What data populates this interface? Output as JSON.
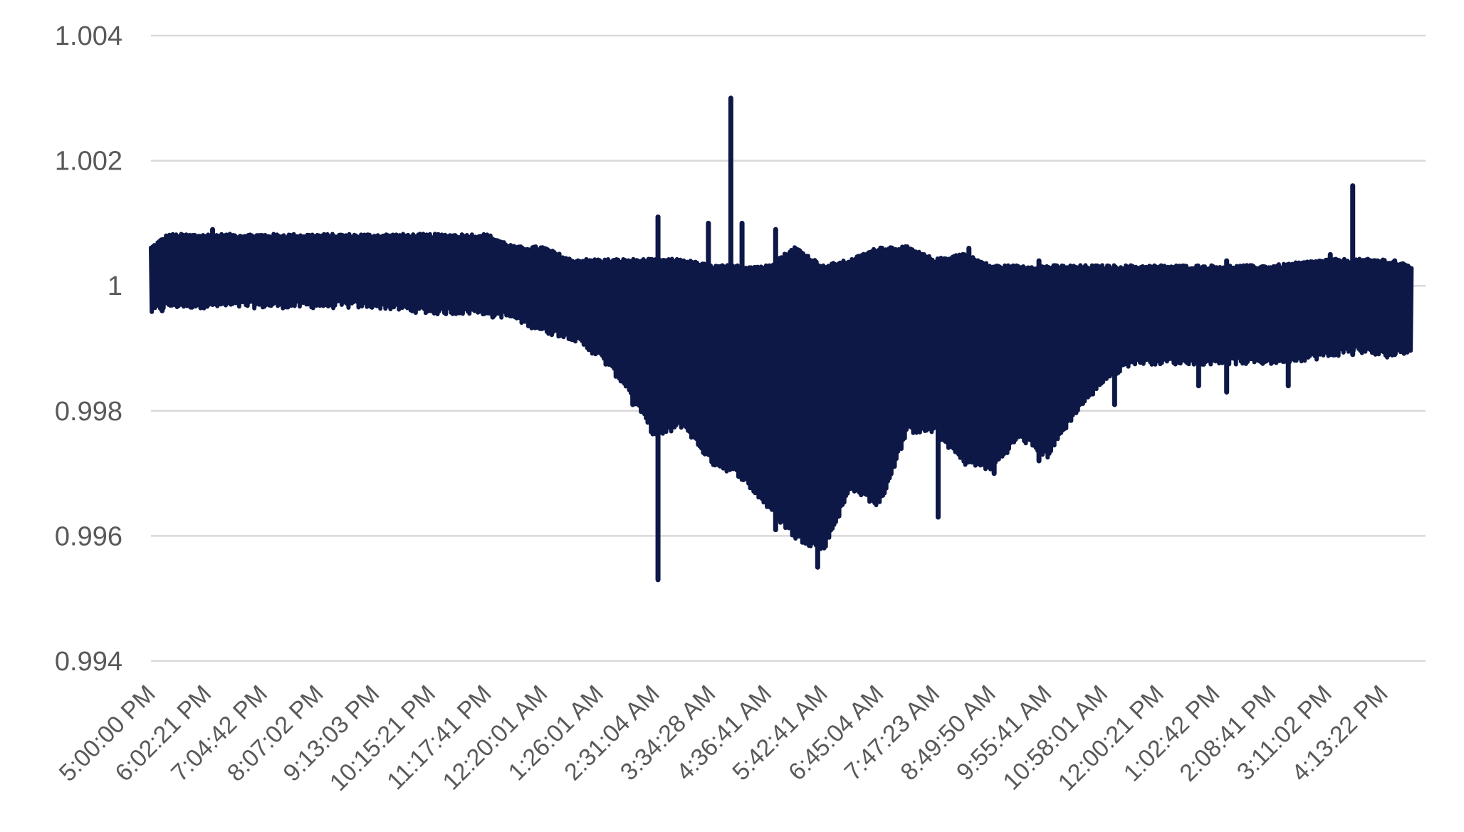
{
  "chart_data": {
    "type": "line",
    "title": "",
    "xlabel": "",
    "ylabel": "",
    "ylim": [
      0.994,
      1.004
    ],
    "yticks": [
      "1.004",
      "1.002",
      "1",
      "0.998",
      "0.996",
      "0.994"
    ],
    "ytick_values": [
      1.004,
      1.002,
      1.0,
      0.998,
      0.996,
      0.994
    ],
    "grid": true,
    "legend": "none",
    "x_categories": [
      "5:00:00 PM",
      "6:02:21 PM",
      "7:04:42 PM",
      "8:07:02 PM",
      "9:13:03 PM",
      "10:15:21 PM",
      "11:17:41 PM",
      "12:20:01 AM",
      "1:26:01 AM",
      "2:31:04 AM",
      "3:34:28 AM",
      "4:36:41 AM",
      "5:42:41 AM",
      "6:45:04 AM",
      "7:47:23 AM",
      "8:49:50 AM",
      "9:55:41 AM",
      "10:58:01 AM",
      "12:00:21 PM",
      "1:02:42 PM",
      "2:08:41 PM",
      "3:11:02 PM",
      "4:13:22 PM"
    ],
    "series": [
      {
        "color": "#0d1847",
        "envelope": [
          {
            "x": 0.0,
            "hi": 1.0006,
            "lo": 0.9996
          },
          {
            "x": 0.3,
            "hi": 1.0008,
            "lo": 0.9997
          },
          {
            "x": 0.6,
            "hi": 1.0008,
            "lo": 0.9997
          },
          {
            "x": 1.0,
            "hi": 1.0008,
            "lo": 0.9997
          },
          {
            "x": 2.0,
            "hi": 1.0008,
            "lo": 0.9997
          },
          {
            "x": 3.0,
            "hi": 1.0008,
            "lo": 0.9997
          },
          {
            "x": 4.0,
            "hi": 1.0008,
            "lo": 0.9997
          },
          {
            "x": 5.0,
            "hi": 1.0008,
            "lo": 0.9996
          },
          {
            "x": 6.0,
            "hi": 1.0008,
            "lo": 0.9996
          },
          {
            "x": 6.5,
            "hi": 1.0006,
            "lo": 0.9995
          },
          {
            "x": 7.0,
            "hi": 1.0006,
            "lo": 0.9993
          },
          {
            "x": 7.5,
            "hi": 1.0004,
            "lo": 0.9992
          },
          {
            "x": 8.0,
            "hi": 1.0004,
            "lo": 0.9989
          },
          {
            "x": 8.5,
            "hi": 1.0004,
            "lo": 0.9984
          },
          {
            "x": 9.0,
            "hi": 1.0004,
            "lo": 0.9976
          },
          {
            "x": 9.5,
            "hi": 1.0004,
            "lo": 0.9978
          },
          {
            "x": 10.0,
            "hi": 1.0003,
            "lo": 0.9972
          },
          {
            "x": 10.5,
            "hi": 1.0003,
            "lo": 0.997
          },
          {
            "x": 11.0,
            "hi": 1.0003,
            "lo": 0.9965
          },
          {
            "x": 11.5,
            "hi": 1.0006,
            "lo": 0.996
          },
          {
            "x": 12.0,
            "hi": 1.0003,
            "lo": 0.9958
          },
          {
            "x": 12.5,
            "hi": 1.0004,
            "lo": 0.9968
          },
          {
            "x": 13.0,
            "hi": 1.0006,
            "lo": 0.9965
          },
          {
            "x": 13.5,
            "hi": 1.0006,
            "lo": 0.9977
          },
          {
            "x": 14.0,
            "hi": 1.0004,
            "lo": 0.9977
          },
          {
            "x": 14.5,
            "hi": 1.0005,
            "lo": 0.9972
          },
          {
            "x": 15.0,
            "hi": 1.0003,
            "lo": 0.9971
          },
          {
            "x": 15.5,
            "hi": 1.0003,
            "lo": 0.9976
          },
          {
            "x": 16.0,
            "hi": 1.0003,
            "lo": 0.9973
          },
          {
            "x": 16.5,
            "hi": 1.0003,
            "lo": 0.998
          },
          {
            "x": 17.0,
            "hi": 1.0003,
            "lo": 0.9985
          },
          {
            "x": 17.5,
            "hi": 1.0003,
            "lo": 0.9988
          },
          {
            "x": 18.0,
            "hi": 1.0003,
            "lo": 0.9988
          },
          {
            "x": 19.0,
            "hi": 1.0003,
            "lo": 0.9988
          },
          {
            "x": 20.0,
            "hi": 1.0003,
            "lo": 0.9988
          },
          {
            "x": 21.0,
            "hi": 1.0004,
            "lo": 0.9989
          },
          {
            "x": 21.5,
            "hi": 1.0004,
            "lo": 0.999
          },
          {
            "x": 22.0,
            "hi": 1.0004,
            "lo": 0.9989
          },
          {
            "x": 22.5,
            "hi": 1.0003,
            "lo": 0.999
          }
        ],
        "spikes": [
          {
            "x": 0.2,
            "hi": 1.0006,
            "lo": 0.9996
          },
          {
            "x": 1.1,
            "hi": 1.0009,
            "lo": 0.9997
          },
          {
            "x": 6.1,
            "hi": 1.0007,
            "lo": 0.9995
          },
          {
            "x": 8.6,
            "hi": 0.9996,
            "lo": 0.9981
          },
          {
            "x": 9.05,
            "hi": 1.0011,
            "lo": 0.9953
          },
          {
            "x": 9.95,
            "hi": 1.001,
            "lo": 0.9974
          },
          {
            "x": 10.35,
            "hi": 1.003,
            "lo": 0.9972
          },
          {
            "x": 10.55,
            "hi": 1.001,
            "lo": 0.997
          },
          {
            "x": 11.15,
            "hi": 1.0009,
            "lo": 0.9961
          },
          {
            "x": 11.9,
            "hi": 1.0003,
            "lo": 0.9955
          },
          {
            "x": 14.05,
            "hi": 1.0003,
            "lo": 0.9963
          },
          {
            "x": 14.6,
            "hi": 1.0006,
            "lo": 0.9973
          },
          {
            "x": 15.05,
            "hi": 1.0003,
            "lo": 0.997
          },
          {
            "x": 15.85,
            "hi": 1.0004,
            "lo": 0.9972
          },
          {
            "x": 17.2,
            "hi": 1.0003,
            "lo": 0.9981
          },
          {
            "x": 18.7,
            "hi": 1.0003,
            "lo": 0.9984
          },
          {
            "x": 19.2,
            "hi": 1.0004,
            "lo": 0.9983
          },
          {
            "x": 20.3,
            "hi": 1.0003,
            "lo": 0.9984
          },
          {
            "x": 21.05,
            "hi": 1.0005,
            "lo": 0.9989
          },
          {
            "x": 21.45,
            "hi": 1.0016,
            "lo": 0.9989
          },
          {
            "x": 22.2,
            "hi": 1.0004,
            "lo": 0.9989
          }
        ]
      }
    ]
  }
}
